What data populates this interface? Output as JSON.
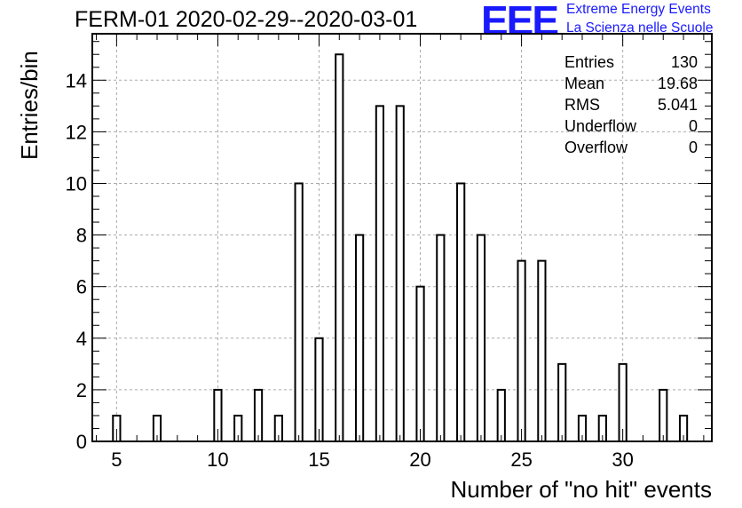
{
  "chart_data": {
    "type": "bar",
    "title": "FERM-01 2020-02-29--2020-03-01",
    "xlabel": "Number of \"no hit\" events",
    "ylabel": "Entries/bin",
    "xlim": [
      3.8,
      34.4
    ],
    "ylim": [
      0,
      15.8
    ],
    "x_ticks": [
      5,
      10,
      15,
      20,
      25,
      30
    ],
    "y_ticks": [
      0,
      2,
      4,
      6,
      8,
      10,
      12,
      14
    ],
    "grid": true,
    "x": [
      5,
      7,
      10,
      11,
      12,
      13,
      14,
      15,
      16,
      17,
      18,
      19,
      20,
      21,
      22,
      23,
      24,
      25,
      26,
      27,
      28,
      29,
      30,
      32,
      33
    ],
    "values": [
      1,
      1,
      2,
      1,
      2,
      1,
      10,
      4,
      15,
      8,
      13,
      13,
      6,
      8,
      10,
      8,
      2,
      7,
      7,
      3,
      1,
      1,
      3,
      2,
      1
    ]
  },
  "stats": [
    {
      "label": "Entries",
      "value": "130"
    },
    {
      "label": "Mean",
      "value": "19.68"
    },
    {
      "label": "RMS",
      "value": "5.041"
    },
    {
      "label": "Underflow",
      "value": "0"
    },
    {
      "label": "Overflow",
      "value": "0"
    }
  ],
  "logo": {
    "mark": "EEE",
    "line1": "Extreme Energy Events",
    "line2": "La Scienza nelle Scuole",
    "color": "#1a1aff"
  }
}
